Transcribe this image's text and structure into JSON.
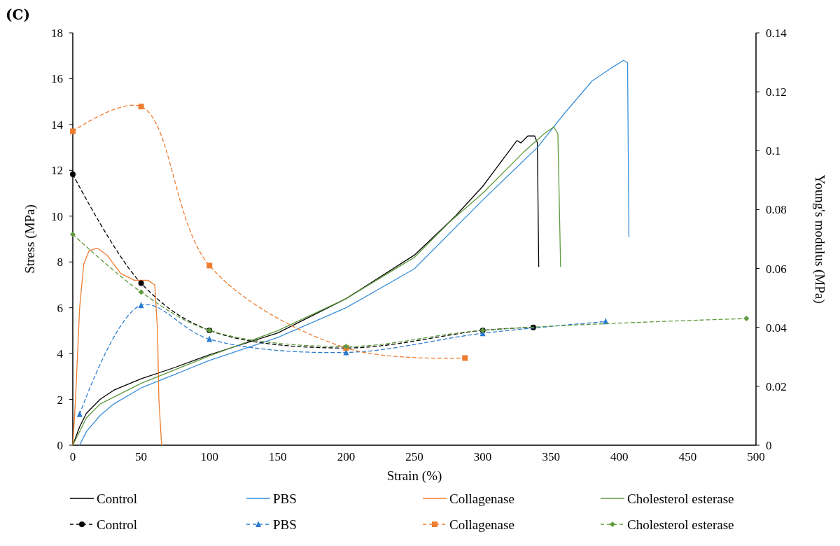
{
  "chart_data": {
    "type": "line",
    "title": "(C)",
    "xlabel": "Strain (%)",
    "ylabel": "Stress (MPa)",
    "y2label": "Young's modulus (MPa)",
    "xlim": [
      0,
      500
    ],
    "xticks": [
      0,
      50,
      100,
      150,
      200,
      250,
      300,
      350,
      400,
      450,
      500
    ],
    "ylim": [
      0,
      18
    ],
    "yticks": [
      0,
      2,
      4,
      6,
      8,
      10,
      12,
      14,
      16,
      18
    ],
    "y2lim": [
      0,
      0.14
    ],
    "y2ticks": [
      0,
      0.02,
      0.04,
      0.06,
      0.08,
      0.1,
      0.12,
      0.14
    ],
    "grid": false,
    "legend": "bottom",
    "series": [
      {
        "name": "Control",
        "color": "#000000",
        "marker": "none",
        "line_style": "solid",
        "x": [
          0,
          5,
          10,
          20,
          30,
          50,
          75,
          100,
          150,
          200,
          250,
          280,
          300,
          325,
          328,
          333,
          338,
          340,
          341
        ],
        "values": [
          0,
          0.8,
          1.4,
          2.0,
          2.4,
          2.9,
          3.4,
          3.95,
          4.9,
          6.4,
          8.3,
          10.0,
          11.3,
          13.3,
          13.2,
          13.5,
          13.5,
          13.2,
          7.8
        ]
      },
      {
        "name": "PBS",
        "color": "#3a8fd9",
        "marker": "none",
        "line_style": "solid",
        "x": [
          5,
          10,
          20,
          30,
          50,
          75,
          100,
          150,
          200,
          250,
          300,
          340,
          360,
          380,
          395,
          403,
          406,
          407
        ],
        "values": [
          0,
          0.6,
          1.3,
          1.8,
          2.5,
          3.1,
          3.7,
          4.7,
          6.0,
          7.7,
          10.7,
          13.0,
          14.5,
          15.9,
          16.5,
          16.8,
          16.7,
          9.1
        ]
      },
      {
        "name": "Collagenase",
        "color": "#ed7d31",
        "marker": "none",
        "line_style": "solid",
        "x": [
          0,
          2,
          5,
          8,
          12,
          18,
          25,
          35,
          45,
          55,
          60,
          62,
          63,
          65
        ],
        "values": [
          0,
          2,
          6,
          7.9,
          8.5,
          8.6,
          8.3,
          7.5,
          7.2,
          7.2,
          7.0,
          5,
          2,
          0
        ]
      },
      {
        "name": "Cholesterol esterase",
        "color": "#5f9a3e",
        "marker": "none",
        "line_style": "solid",
        "x": [
          0,
          10,
          20,
          50,
          100,
          150,
          200,
          250,
          275,
          300,
          330,
          345,
          352,
          355,
          357
        ],
        "values": [
          0,
          1.2,
          1.8,
          2.7,
          3.9,
          5.0,
          6.4,
          8.2,
          9.7,
          11.0,
          12.8,
          13.6,
          13.9,
          13.6,
          7.8
        ]
      },
      {
        "name": "Control",
        "color": "#000000",
        "axis": "y2",
        "marker": "circle",
        "line_style": "dashed",
        "x": [
          0,
          50,
          100,
          200,
          300,
          337
        ],
        "values": [
          0.092,
          0.055,
          0.039,
          0.033,
          0.039,
          0.04
        ]
      },
      {
        "name": "PBS",
        "color": "#2a7bd0",
        "axis": "y2",
        "marker": "triangle",
        "line_style": "dashed",
        "x": [
          5,
          50,
          100,
          200,
          300,
          390
        ],
        "values": [
          0.0105,
          0.0475,
          0.036,
          0.0315,
          0.038,
          0.042
        ]
      },
      {
        "name": "Collagenase",
        "color": "#ed7d31",
        "axis": "y2",
        "marker": "square",
        "line_style": "dashed",
        "x": [
          0,
          50,
          100,
          200,
          287
        ],
        "values": [
          0.1066,
          0.115,
          0.061,
          0.033,
          0.0296
        ]
      },
      {
        "name": "Cholesterol esterase",
        "color": "#5f9a3e",
        "axis": "y2",
        "marker": "diamond",
        "line_style": "dashed",
        "x": [
          0,
          50,
          100,
          200,
          300,
          493
        ],
        "values": [
          0.0716,
          0.052,
          0.039,
          0.0335,
          0.039,
          0.043
        ]
      }
    ]
  }
}
